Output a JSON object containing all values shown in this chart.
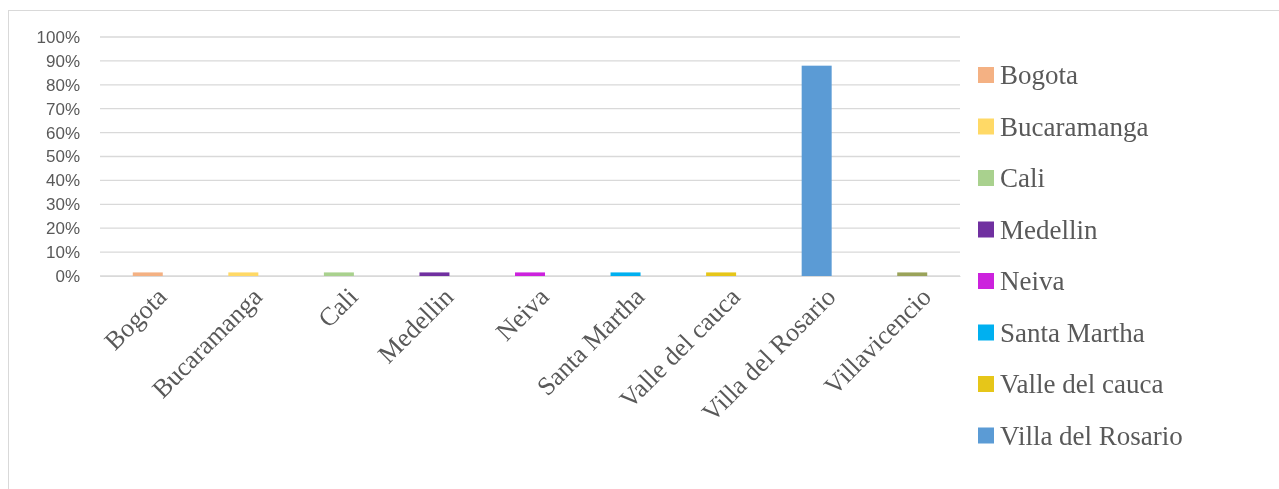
{
  "chart_data": {
    "type": "bar",
    "categories": [
      "Bogota",
      "Bucaramanga",
      "Cali",
      "Medellin",
      "Neiva",
      "Santa Martha",
      "Valle del cauca",
      "Villa del Rosario",
      "Villavicencio"
    ],
    "stacked": true,
    "series": [
      {
        "name": "Bogota",
        "color": "#f4b183",
        "values": [
          1.5,
          null,
          null,
          null,
          null,
          null,
          null,
          null,
          null
        ]
      },
      {
        "name": "Bucaramanga",
        "color": "#ffd966",
        "values": [
          null,
          1.5,
          null,
          null,
          null,
          null,
          null,
          null,
          null
        ]
      },
      {
        "name": "Cali",
        "color": "#a9d18e",
        "values": [
          null,
          null,
          1.5,
          null,
          null,
          null,
          null,
          null,
          null
        ]
      },
      {
        "name": "Medellin",
        "color": "#7030a0",
        "values": [
          null,
          null,
          null,
          1.5,
          null,
          null,
          null,
          null,
          null
        ]
      },
      {
        "name": "Neiva",
        "color": "#cc22dd",
        "values": [
          null,
          null,
          null,
          null,
          1.5,
          null,
          null,
          null,
          null
        ]
      },
      {
        "name": "Santa Martha",
        "color": "#00b0f0",
        "values": [
          null,
          null,
          null,
          null,
          null,
          1.5,
          null,
          null,
          null
        ]
      },
      {
        "name": "Valle del cauca",
        "color": "#e6c619",
        "values": [
          null,
          null,
          null,
          null,
          null,
          null,
          1.5,
          null,
          null
        ]
      },
      {
        "name": "Villa del Rosario",
        "color": "#5b9bd5",
        "values": [
          null,
          null,
          null,
          null,
          null,
          null,
          null,
          88,
          null
        ]
      },
      {
        "color": "#9aa35a",
        "values": [
          null,
          null,
          null,
          null,
          null,
          null,
          null,
          null,
          1.5
        ]
      }
    ],
    "ylim": [
      0,
      100
    ],
    "yticks": [
      {
        "value": 0,
        "label": "0%"
      },
      {
        "value": 10,
        "label": "10%"
      },
      {
        "value": 20,
        "label": "20%"
      },
      {
        "value": 30,
        "label": "30%"
      },
      {
        "value": 40,
        "label": "40%"
      },
      {
        "value": 50,
        "label": "50%"
      },
      {
        "value": 60,
        "label": "60%"
      },
      {
        "value": 70,
        "label": "70%"
      },
      {
        "value": 80,
        "label": "80%"
      },
      {
        "value": 90,
        "label": "90%"
      },
      {
        "value": 100,
        "label": "100%"
      }
    ],
    "grid": "y",
    "legend": "right"
  }
}
